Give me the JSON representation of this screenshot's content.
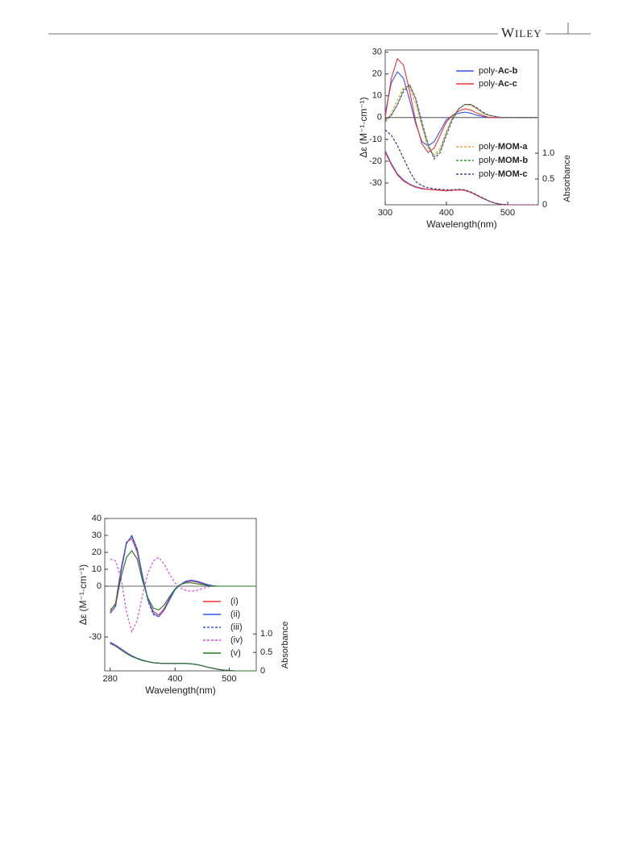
{
  "header": {
    "brand": "WILEY"
  },
  "chart_data": [
    {
      "type": "line",
      "x": [
        300,
        310,
        320,
        330,
        340,
        350,
        360,
        370,
        380,
        390,
        400,
        410,
        420,
        430,
        440,
        450,
        460,
        470,
        480,
        490,
        500,
        510,
        520,
        530,
        540,
        550
      ],
      "xlabel": "Wavelength(nm)",
      "ylabel": "Δε (M⁻¹·cm⁻¹)",
      "y2label": "Absorbance",
      "xlim": [
        300,
        550
      ],
      "xticks": [
        300,
        400,
        500
      ],
      "ylim": [
        -40,
        31
      ],
      "yticks": [
        -30,
        -20,
        -10,
        0,
        10,
        20,
        30
      ],
      "y2lim": [
        0,
        3.0
      ],
      "y2ticks": [
        0,
        0.5,
        {
          "value": 1.0,
          "label": "1.0"
        }
      ],
      "series": [
        {
          "name": "poly-Ac-b",
          "color": "#3355ee",
          "dash": false,
          "values": [
            2,
            16,
            21,
            18,
            8,
            -3,
            -11,
            -13,
            -11,
            -6,
            -1,
            1,
            2,
            2.5,
            2,
            1,
            0.5,
            0,
            0,
            0,
            0,
            0,
            0,
            0,
            0,
            0
          ],
          "absorbance": [
            1.05,
            0.8,
            0.6,
            0.48,
            0.4,
            0.35,
            0.32,
            0.3,
            0.29,
            0.28,
            0.27,
            0.28,
            0.29,
            0.28,
            0.24,
            0.18,
            0.12,
            0.07,
            0.03,
            0.01,
            0,
            0,
            0,
            0,
            0,
            0
          ]
        },
        {
          "name": "poly-Ac-c",
          "color": "#ee3333",
          "dash": false,
          "values": [
            0,
            18,
            27,
            24,
            12,
            -2,
            -12,
            -16,
            -14,
            -8,
            -2,
            1,
            3,
            4,
            3.5,
            2,
            1,
            0,
            0,
            0,
            0,
            0,
            0,
            0,
            0,
            0
          ],
          "absorbance": [
            1.02,
            0.78,
            0.58,
            0.46,
            0.39,
            0.34,
            0.31,
            0.3,
            0.29,
            0.28,
            0.27,
            0.28,
            0.29,
            0.28,
            0.24,
            0.18,
            0.12,
            0.07,
            0.03,
            0.01,
            0,
            0,
            0,
            0,
            0,
            0
          ]
        },
        {
          "name": "poly-MOM-a",
          "color": "#f0a030",
          "dash": true,
          "values": [
            -2,
            2,
            8,
            14,
            14,
            6,
            -4,
            -14,
            -17,
            -14,
            -6,
            0,
            4,
            6,
            5.5,
            4,
            2,
            1,
            0.5,
            0,
            0,
            0,
            0,
            0,
            0,
            0
          ],
          "absorbance": [
            1.45,
            1.35,
            1.15,
            0.9,
            0.65,
            0.45,
            0.37,
            0.33,
            0.31,
            0.3,
            0.29,
            0.29,
            0.3,
            0.29,
            0.25,
            0.19,
            0.13,
            0.07,
            0.03,
            0.01,
            0,
            0,
            0,
            0,
            0,
            0
          ]
        },
        {
          "name": "poly-MOM-b",
          "color": "#30a030",
          "dash": true,
          "values": [
            -2,
            1,
            6,
            13,
            15,
            8,
            -3,
            -13,
            -18,
            -15,
            -7,
            0,
            4,
            6,
            6,
            4,
            2,
            1,
            0.5,
            0,
            0,
            0,
            0,
            0,
            0,
            0
          ],
          "absorbance": [
            1.45,
            1.35,
            1.15,
            0.9,
            0.65,
            0.45,
            0.37,
            0.33,
            0.31,
            0.3,
            0.29,
            0.29,
            0.3,
            0.29,
            0.25,
            0.19,
            0.13,
            0.07,
            0.03,
            0.01,
            0,
            0,
            0,
            0,
            0,
            0
          ]
        },
        {
          "name": "poly-MOM-c",
          "color": "#553399",
          "dash": true,
          "values": [
            -1,
            1,
            6,
            12,
            15,
            9,
            -2,
            -12,
            -19,
            -16,
            -8,
            -1,
            4,
            6,
            6,
            4.5,
            2.5,
            1,
            0.5,
            0,
            0,
            0,
            0,
            0,
            0,
            0
          ],
          "absorbance": [
            1.45,
            1.35,
            1.15,
            0.9,
            0.65,
            0.45,
            0.37,
            0.33,
            0.31,
            0.3,
            0.29,
            0.29,
            0.3,
            0.29,
            0.25,
            0.19,
            0.13,
            0.07,
            0.03,
            0.01,
            0,
            0,
            0,
            0,
            0,
            0
          ]
        }
      ]
    },
    {
      "type": "line",
      "x": [
        280,
        290,
        300,
        310,
        320,
        330,
        340,
        350,
        360,
        370,
        380,
        390,
        400,
        410,
        420,
        430,
        440,
        450,
        460,
        470,
        480,
        490,
        500,
        510,
        520,
        530,
        540,
        550
      ],
      "xlabel": "Wavelength(nm)",
      "ylabel": "Δε (M⁻¹·cm⁻¹)",
      "y2label": "Absorbance",
      "xlim": [
        270,
        550
      ],
      "xticks": [
        280,
        400,
        500
      ],
      "ylim": [
        -50,
        40
      ],
      "yticks": [
        -30,
        0,
        10,
        20,
        30,
        40
      ],
      "y2lim": [
        0,
        4.13
      ],
      "y2ticks": [
        0,
        0.5,
        {
          "value": 1.0,
          "label": "1.0"
        }
      ],
      "series": [
        {
          "name": "(i)",
          "color": "#ee3333",
          "dash": false,
          "values": [
            -15,
            -10,
            10,
            26,
            28,
            20,
            5,
            -8,
            -15,
            -17,
            -13,
            -7,
            -2,
            1,
            2.5,
            3,
            2.5,
            1.5,
            0.5,
            0,
            0,
            0,
            0,
            0,
            0,
            0,
            0,
            0
          ],
          "absorbance": [
            0.75,
            0.68,
            0.58,
            0.48,
            0.4,
            0.33,
            0.28,
            0.25,
            0.22,
            0.21,
            0.2,
            0.2,
            0.2,
            0.2,
            0.2,
            0.19,
            0.17,
            0.14,
            0.1,
            0.07,
            0.04,
            0.02,
            0.01,
            0,
            0,
            0,
            0,
            0
          ]
        },
        {
          "name": "(ii)",
          "color": "#3355ee",
          "dash": false,
          "values": [
            -16,
            -12,
            8,
            25,
            30,
            22,
            6,
            -8,
            -16,
            -18,
            -14,
            -8,
            -2,
            1,
            3,
            3.5,
            3,
            2,
            1,
            0.3,
            0,
            0,
            0,
            0,
            0,
            0,
            0,
            0
          ],
          "absorbance": [
            0.78,
            0.7,
            0.6,
            0.5,
            0.41,
            0.34,
            0.29,
            0.25,
            0.22,
            0.21,
            0.2,
            0.2,
            0.2,
            0.2,
            0.2,
            0.19,
            0.17,
            0.14,
            0.1,
            0.07,
            0.04,
            0.02,
            0.01,
            0,
            0,
            0,
            0,
            0
          ]
        },
        {
          "name": "(iii)",
          "color": "#3355ee",
          "dash": true,
          "values": [
            -16,
            -12,
            9,
            26,
            29,
            21,
            5,
            -9,
            -17,
            -18,
            -14,
            -7,
            -2,
            1,
            2.8,
            3.3,
            2.8,
            1.8,
            0.8,
            0.2,
            0,
            0,
            0,
            0,
            0,
            0,
            0,
            0
          ],
          "absorbance": [
            0.77,
            0.69,
            0.59,
            0.49,
            0.41,
            0.34,
            0.29,
            0.25,
            0.22,
            0.21,
            0.2,
            0.2,
            0.2,
            0.2,
            0.2,
            0.19,
            0.17,
            0.14,
            0.1,
            0.07,
            0.04,
            0.02,
            0.01,
            0,
            0,
            0,
            0,
            0
          ]
        },
        {
          "name": "(iv)",
          "color": "#dd44dd",
          "dash": true,
          "values": [
            16,
            15,
            5,
            -15,
            -27,
            -20,
            -5,
            8,
            15,
            17,
            13,
            7,
            2,
            -1,
            -2.5,
            -3,
            -2.5,
            -1.5,
            -0.5,
            0,
            0,
            0,
            0,
            0,
            0,
            0,
            0,
            0
          ],
          "absorbance": [
            0.76,
            0.69,
            0.59,
            0.49,
            0.4,
            0.33,
            0.28,
            0.25,
            0.22,
            0.21,
            0.2,
            0.2,
            0.2,
            0.2,
            0.2,
            0.19,
            0.17,
            0.14,
            0.1,
            0.07,
            0.04,
            0.02,
            0.01,
            0,
            0,
            0,
            0,
            0
          ]
        },
        {
          "name": "(v)",
          "color": "#227722",
          "dash": false,
          "values": [
            -14,
            -11,
            5,
            17,
            21,
            16,
            3,
            -7,
            -13,
            -14,
            -11,
            -6,
            -1.5,
            1,
            2,
            2,
            1.5,
            1,
            0.3,
            0,
            0,
            0,
            0,
            0,
            0,
            0,
            0,
            0
          ],
          "absorbance": [
            0.74,
            0.67,
            0.57,
            0.47,
            0.39,
            0.33,
            0.28,
            0.25,
            0.22,
            0.21,
            0.2,
            0.2,
            0.2,
            0.2,
            0.2,
            0.19,
            0.17,
            0.14,
            0.1,
            0.07,
            0.04,
            0.02,
            0.01,
            0,
            0,
            0,
            0,
            0
          ]
        }
      ]
    }
  ]
}
